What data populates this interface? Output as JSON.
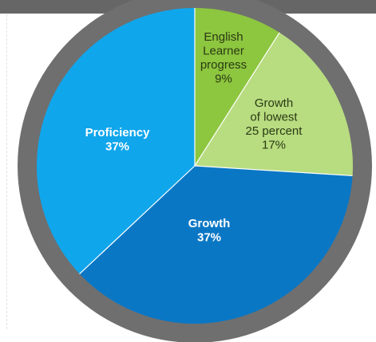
{
  "chart_data": {
    "type": "pie",
    "title": "",
    "legend": "none",
    "slices": [
      {
        "label_lines": [
          "English",
          "Learner",
          "progress",
          "9%"
        ],
        "value": 9,
        "color": "#8dc63f",
        "text_color": "#2b3a14",
        "bold": false
      },
      {
        "label_lines": [
          "Growth",
          "of lowest",
          "25 percent",
          "17%"
        ],
        "value": 17,
        "color": "#b8dc80",
        "text_color": "#2b3a14",
        "bold": false
      },
      {
        "label_lines": [
          "Growth",
          "37%"
        ],
        "value": 37,
        "color": "#0a77c5",
        "text_color": "#ffffff",
        "bold": true
      },
      {
        "label_lines": [
          "Proficiency",
          "37%"
        ],
        "value": 37,
        "color": "#10a6ec",
        "text_color": "#ffffff",
        "bold": true
      }
    ],
    "ring_color": "#6f6f6f",
    "separator_color": "#ffffff"
  }
}
